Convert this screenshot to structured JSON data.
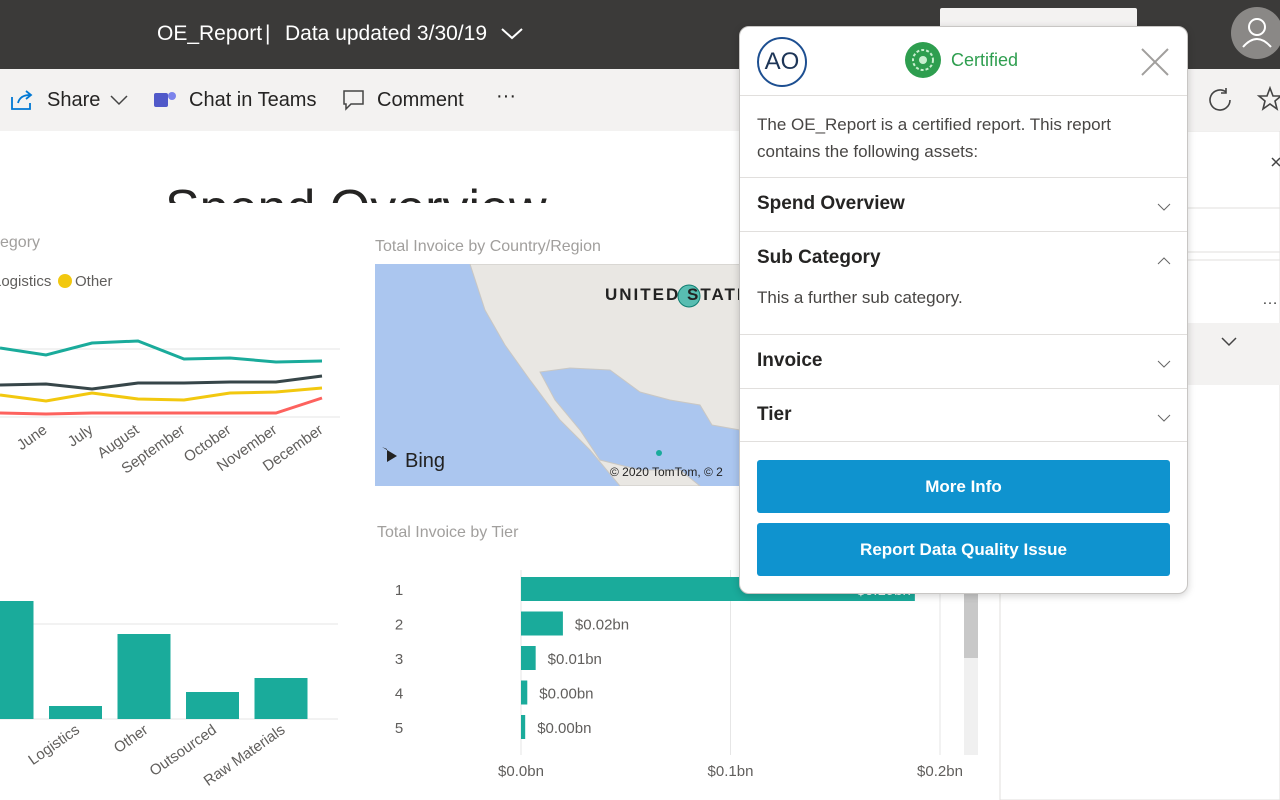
{
  "header": {
    "title": "OE_Report",
    "separator": "|",
    "updated": "Data updated 3/30/19"
  },
  "toolbar": {
    "share": "Share",
    "chat": "Chat in Teams",
    "comment": "Comment",
    "more": "···"
  },
  "report": {
    "title": "Spend Overview"
  },
  "map": {
    "title": "Total Invoice by Country/Region",
    "label": "UNITED STATES",
    "logo": "Bing",
    "copyright": "© 2020 TomTom, © 2"
  },
  "chart_data": [
    {
      "type": "line",
      "title": "egory",
      "categories": [
        null,
        "June",
        "July",
        "August",
        "September",
        "October",
        "November",
        "December"
      ],
      "ylim": [
        0,
        100
      ],
      "series": [
        {
          "color": "#1aab9b",
          "values": [
            82,
            75,
            87,
            89,
            71,
            72,
            68,
            69
          ]
        },
        {
          "name": "Logistics",
          "color": "#374649",
          "values": [
            45,
            46,
            41,
            47,
            47,
            48,
            48,
            54
          ]
        },
        {
          "name": "Other",
          "color": "#f2c80f",
          "values": [
            35,
            29,
            37,
            31,
            30,
            37,
            38,
            42
          ]
        },
        {
          "color": "#fd625e",
          "values": [
            17,
            16,
            17,
            17,
            17,
            17,
            17,
            32
          ]
        }
      ]
    },
    {
      "type": "bar",
      "categories": [
        null,
        "Logistics",
        "Other",
        "Outsourced",
        "Raw Materials"
      ],
      "values": [
        118,
        13,
        85,
        27,
        41
      ],
      "color": "#1aab9b",
      "ylim": [
        0,
        120
      ]
    },
    {
      "type": "bar",
      "horizontal": true,
      "title": "Total Invoice by Tier",
      "categories": [
        "1",
        "2",
        "3",
        "4",
        "5"
      ],
      "values": [
        0.188,
        0.02,
        0.007,
        0.003,
        0.002
      ],
      "value_labels": [
        "$0.19bn",
        "$0.02bn",
        "$0.01bn",
        "$0.00bn",
        "$0.00bn"
      ],
      "color": "#1aab9b",
      "xlim": [
        0,
        0.2
      ],
      "xticks": [
        {
          "value": 0,
          "label": "$0.0bn"
        },
        {
          "value": 0.1,
          "label": "$0.1bn"
        },
        {
          "value": 0.2,
          "label": "$0.2bn"
        }
      ],
      "grid": true
    }
  ],
  "popup": {
    "logo": "AO",
    "badge": "Certified",
    "description": "The OE_Report is a certified report. This report contains the following assets:",
    "sections": [
      {
        "title": "Spend Overview"
      },
      {
        "title": "Sub Category",
        "body": "This a further sub category."
      },
      {
        "title": "Invoice"
      },
      {
        "title": "Tier"
      }
    ],
    "buttons": [
      "More Info",
      "Report Data Quality Issue"
    ]
  }
}
